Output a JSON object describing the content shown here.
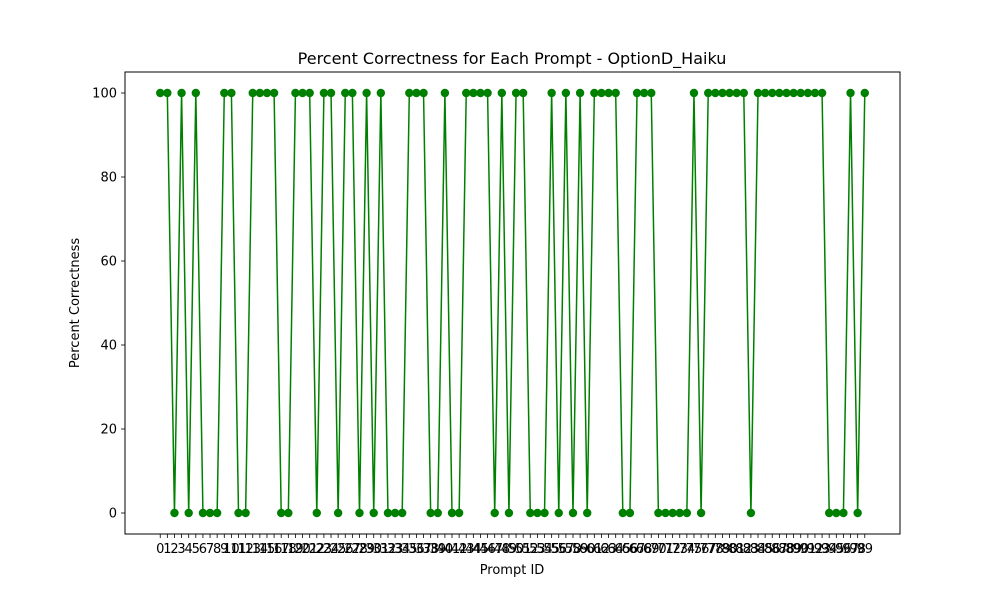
{
  "chart_data": {
    "type": "line",
    "title": "Percent Correctness for Each Prompt - OptionD_Haiku",
    "xlabel": "Prompt ID",
    "ylabel": "Percent Correctness",
    "x": [
      0,
      1,
      2,
      3,
      4,
      5,
      6,
      7,
      8,
      9,
      10,
      11,
      12,
      13,
      14,
      15,
      16,
      17,
      18,
      19,
      20,
      21,
      22,
      23,
      24,
      25,
      26,
      27,
      28,
      29,
      30,
      31,
      32,
      33,
      34,
      35,
      36,
      37,
      38,
      39,
      40,
      41,
      42,
      43,
      44,
      45,
      46,
      47,
      48,
      49,
      50,
      51,
      52,
      53,
      54,
      55,
      56,
      57,
      58,
      59,
      60,
      61,
      62,
      63,
      64,
      65,
      66,
      67,
      68,
      69,
      70,
      71,
      72,
      73,
      74,
      75,
      76,
      77,
      78,
      79,
      80,
      81,
      82,
      83,
      84,
      85,
      86,
      87,
      88,
      89,
      90,
      91,
      92,
      93,
      94,
      95,
      96,
      97,
      98,
      99
    ],
    "values": [
      100,
      100,
      0,
      100,
      0,
      100,
      0,
      0,
      0,
      100,
      100,
      0,
      0,
      100,
      100,
      100,
      100,
      0,
      0,
      100,
      100,
      100,
      0,
      100,
      100,
      0,
      100,
      100,
      0,
      100,
      0,
      100,
      0,
      0,
      0,
      100,
      100,
      100,
      0,
      0,
      100,
      0,
      0,
      100,
      100,
      100,
      100,
      0,
      100,
      0,
      100,
      100,
      0,
      0,
      0,
      100,
      0,
      100,
      0,
      100,
      0,
      100,
      100,
      100,
      100,
      0,
      0,
      100,
      100,
      100,
      0,
      0,
      0,
      0,
      0,
      100,
      0,
      100,
      100,
      100,
      100,
      100,
      100,
      0,
      100,
      100,
      100,
      100,
      100,
      100,
      100,
      100,
      100,
      100,
      0,
      0,
      0,
      100,
      0,
      100
    ],
    "xlim": [
      -4.95,
      103.95
    ],
    "ylim": [
      -5,
      105
    ],
    "yticks": [
      0,
      20,
      40,
      60,
      80,
      100
    ],
    "grid": false,
    "color": "#008000"
  }
}
